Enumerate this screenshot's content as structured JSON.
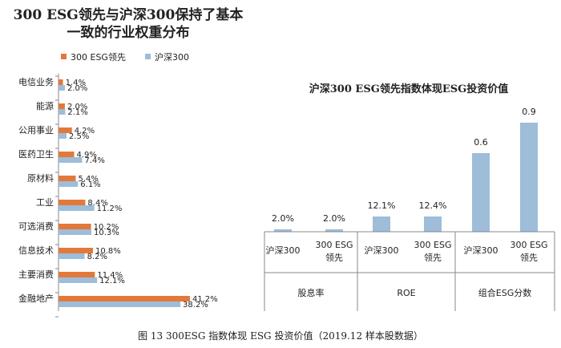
{
  "colors": {
    "esg": "#e2793a",
    "hs300": "#9dbdd9"
  },
  "caption": "图 13 300ESG 指数体现 ESG 投资价值（2019.12 样本股数据）",
  "chart_data": [
    {
      "type": "bar",
      "orientation": "horizontal",
      "title": "300 ESG领先与沪深300保持了基本一致的行业权重分布",
      "title_lines": [
        "300 ESG领先与沪深300保持了基本",
        "一致的行业权重分布"
      ],
      "legend_position": "top-left",
      "categories": [
        "电信业务",
        "能源",
        "公用事业",
        "医药卫生",
        "原材料",
        "工业",
        "可选消费",
        "信息技术",
        "主要消费",
        "金融地产"
      ],
      "series": [
        {
          "name": "300 ESG领先",
          "values": [
            1.4,
            2.0,
            4.2,
            4.9,
            5.4,
            8.4,
            10.2,
            10.8,
            11.4,
            41.2
          ],
          "labels": [
            "1.4%",
            "2.0%",
            "4.2%",
            "4.9%",
            "5.4%",
            "8.4%",
            "10.2%",
            "10.8%",
            "11.4%",
            "41.2%"
          ]
        },
        {
          "name": "沪深300",
          "values": [
            2.0,
            2.1,
            2.5,
            7.4,
            6.1,
            11.2,
            10.3,
            8.2,
            12.1,
            38.2
          ],
          "labels": [
            "2.0%",
            "2.1%",
            "2.5%",
            "7.4%",
            "6.1%",
            "11.2%",
            "10.3%",
            "8.2%",
            "12.1%",
            "38.2%"
          ]
        }
      ],
      "unit": "%",
      "xlim": [
        0,
        45
      ],
      "grid": false
    },
    {
      "type": "bar",
      "title": "沪深300 ESG领先指数体现ESG投资价值",
      "groups": [
        "股息率",
        "ROE",
        "组合ESG分数"
      ],
      "categories": [
        "沪深300",
        "300 ESG领先",
        "沪深300",
        "300 ESG领先",
        "沪深300",
        "300 ESG领先"
      ],
      "category_lines": [
        [
          "沪深300"
        ],
        [
          "300 ESG",
          "领先"
        ],
        [
          "沪深300"
        ],
        [
          "300 ESG",
          "领先"
        ],
        [
          "沪深300"
        ],
        [
          "300 ESG",
          "领先"
        ]
      ],
      "values": [
        2.0,
        2.0,
        12.1,
        12.4,
        0.6,
        0.9
      ],
      "value_labels": [
        "2.0%",
        "2.0%",
        "12.1%",
        "12.4%",
        "0.6",
        "0.9"
      ],
      "note": "mixed units per group; bar heights on a shared visual scale",
      "grid": false
    }
  ]
}
